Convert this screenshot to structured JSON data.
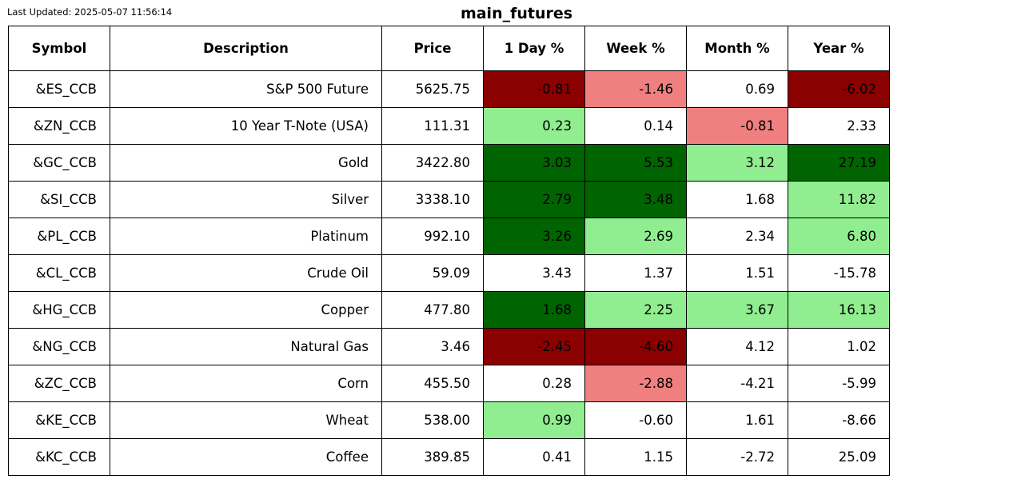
{
  "last_updated": "Last Updated: 2025-05-07 11:56:14",
  "title": "main_futures",
  "colors": {
    "dark_red": "#8b0000",
    "light_red": "#f08080",
    "dark_green": "#006400",
    "light_green": "#90ee90",
    "none": "#ffffff"
  },
  "chart_data": {
    "type": "table",
    "title": "main_futures",
    "columns": [
      "Symbol",
      "Description",
      "Price",
      "1 Day %",
      "Week %",
      "Month %",
      "Year %"
    ],
    "rows": [
      {
        "symbol": "&ES_CCB",
        "description": "S&P 500 Future",
        "price": "5625.75",
        "cells": [
          {
            "v": "-0.81",
            "c": "dark_red"
          },
          {
            "v": "-1.46",
            "c": "light_red"
          },
          {
            "v": "0.69",
            "c": "none"
          },
          {
            "v": "-6.02",
            "c": "dark_red"
          }
        ]
      },
      {
        "symbol": "&ZN_CCB",
        "description": "10 Year T-Note (USA)",
        "price": "111.31",
        "cells": [
          {
            "v": "0.23",
            "c": "light_green"
          },
          {
            "v": "0.14",
            "c": "none"
          },
          {
            "v": "-0.81",
            "c": "light_red"
          },
          {
            "v": "2.33",
            "c": "none"
          }
        ]
      },
      {
        "symbol": "&GC_CCB",
        "description": "Gold",
        "price": "3422.80",
        "cells": [
          {
            "v": "3.03",
            "c": "dark_green"
          },
          {
            "v": "5.53",
            "c": "dark_green"
          },
          {
            "v": "3.12",
            "c": "light_green"
          },
          {
            "v": "27.19",
            "c": "dark_green"
          }
        ]
      },
      {
        "symbol": "&SI_CCB",
        "description": "Silver",
        "price": "3338.10",
        "cells": [
          {
            "v": "2.79",
            "c": "dark_green"
          },
          {
            "v": "3.48",
            "c": "dark_green"
          },
          {
            "v": "1.68",
            "c": "none"
          },
          {
            "v": "11.82",
            "c": "light_green"
          }
        ]
      },
      {
        "symbol": "&PL_CCB",
        "description": "Platinum",
        "price": "992.10",
        "cells": [
          {
            "v": "3.26",
            "c": "dark_green"
          },
          {
            "v": "2.69",
            "c": "light_green"
          },
          {
            "v": "2.34",
            "c": "none"
          },
          {
            "v": "6.80",
            "c": "light_green"
          }
        ]
      },
      {
        "symbol": "&CL_CCB",
        "description": "Crude Oil",
        "price": "59.09",
        "cells": [
          {
            "v": "3.43",
            "c": "none"
          },
          {
            "v": "1.37",
            "c": "none"
          },
          {
            "v": "1.51",
            "c": "none"
          },
          {
            "v": "-15.78",
            "c": "none"
          }
        ]
      },
      {
        "symbol": "&HG_CCB",
        "description": "Copper",
        "price": "477.80",
        "cells": [
          {
            "v": "1.68",
            "c": "dark_green"
          },
          {
            "v": "2.25",
            "c": "light_green"
          },
          {
            "v": "3.67",
            "c": "light_green"
          },
          {
            "v": "16.13",
            "c": "light_green"
          }
        ]
      },
      {
        "symbol": "&NG_CCB",
        "description": "Natural Gas",
        "price": "3.46",
        "cells": [
          {
            "v": "-2.45",
            "c": "dark_red"
          },
          {
            "v": "-4.60",
            "c": "dark_red"
          },
          {
            "v": "4.12",
            "c": "none"
          },
          {
            "v": "1.02",
            "c": "none"
          }
        ]
      },
      {
        "symbol": "&ZC_CCB",
        "description": "Corn",
        "price": "455.50",
        "cells": [
          {
            "v": "0.28",
            "c": "none"
          },
          {
            "v": "-2.88",
            "c": "light_red"
          },
          {
            "v": "-4.21",
            "c": "none"
          },
          {
            "v": "-5.99",
            "c": "none"
          }
        ]
      },
      {
        "symbol": "&KE_CCB",
        "description": "Wheat",
        "price": "538.00",
        "cells": [
          {
            "v": "0.99",
            "c": "light_green"
          },
          {
            "v": "-0.60",
            "c": "none"
          },
          {
            "v": "1.61",
            "c": "none"
          },
          {
            "v": "-8.66",
            "c": "none"
          }
        ]
      },
      {
        "symbol": "&KC_CCB",
        "description": "Coffee",
        "price": "389.85",
        "cells": [
          {
            "v": "0.41",
            "c": "none"
          },
          {
            "v": "1.15",
            "c": "none"
          },
          {
            "v": "-2.72",
            "c": "none"
          },
          {
            "v": "25.09",
            "c": "none"
          }
        ]
      }
    ]
  }
}
